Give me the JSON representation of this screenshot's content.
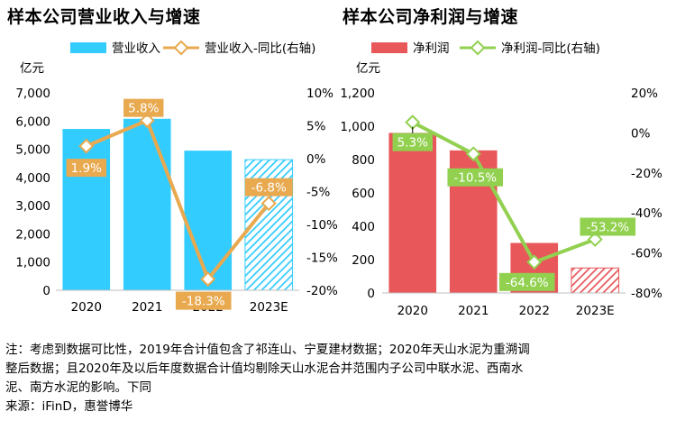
{
  "note": {
    "line1": "注：考虑到数据可比性，2019年合计值包含了祁连山、宁夏建材数据；2020年天山水泥为重溯调",
    "line2": "整后数据；且2020年及以后年度数据合计值均剔除天山水泥合并范围内子公司中联水泥、西南水",
    "line3": "泥、南方水泥的影响。下同",
    "source": "来源：iFinD，惠誉博华"
  },
  "colors": {
    "revenue_bar": "#33ccff",
    "revenue_line": "#e8a94f",
    "profit_bar": "#e8575a",
    "profit_line": "#92d050",
    "grid": "#d9d9d9"
  },
  "chart_data": [
    {
      "type": "bar",
      "title": "样本公司营业收入与增速",
      "unit": "亿元",
      "categories": [
        "2020",
        "2021",
        "2022",
        "2023E"
      ],
      "series": [
        {
          "name": "营业收入",
          "type": "bar",
          "axis": "left",
          "values": [
            5720,
            6080,
            4950,
            4630
          ],
          "hatched_last": true
        },
        {
          "name": "营业收入-同比(右轴)",
          "type": "line",
          "axis": "right",
          "values": [
            1.9,
            5.8,
            -18.3,
            -6.8
          ],
          "labels": [
            "1.9%",
            "5.8%",
            "-18.3%",
            "-6.8%"
          ]
        }
      ],
      "y_left": {
        "min": 0,
        "max": 7000,
        "ticks": [
          0,
          1000,
          2000,
          3000,
          4000,
          5000,
          6000,
          7000
        ],
        "tick_labels": [
          "0",
          "1,000",
          "2,000",
          "3,000",
          "4,000",
          "5,000",
          "6,000",
          "7,000"
        ]
      },
      "y_right": {
        "min": -20,
        "max": 10,
        "ticks": [
          -20,
          -15,
          -10,
          -5,
          0,
          5,
          10
        ],
        "tick_labels": [
          "-20%",
          "-15%",
          "-10%",
          "-5%",
          "0%",
          "5%",
          "10%"
        ]
      },
      "grid": false,
      "legend_position": "top"
    },
    {
      "type": "bar",
      "title": "样本公司净利润与增速",
      "unit": "亿元",
      "categories": [
        "2020",
        "2021",
        "2022",
        "2023E"
      ],
      "series": [
        {
          "name": "净利润",
          "type": "bar",
          "axis": "left",
          "values": [
            960,
            855,
            300,
            150
          ],
          "hatched_last": true
        },
        {
          "name": "净利润-同比(右轴)",
          "type": "line",
          "axis": "right",
          "values": [
            5.3,
            -10.5,
            -64.6,
            -53.2
          ],
          "labels": [
            "5.3%",
            "-10.5%",
            "-64.6%",
            "-53.2%"
          ]
        }
      ],
      "y_left": {
        "min": 0,
        "max": 1200,
        "ticks": [
          0,
          200,
          400,
          600,
          800,
          1000,
          1200
        ],
        "tick_labels": [
          "0",
          "200",
          "400",
          "600",
          "800",
          "1,000",
          "1,200"
        ]
      },
      "y_right": {
        "min": -80,
        "max": 20,
        "ticks": [
          -80,
          -60,
          -40,
          -20,
          0,
          20
        ],
        "tick_labels": [
          "-80%",
          "-60%",
          "-40%",
          "-20%",
          "0%",
          "20%"
        ]
      },
      "grid": false,
      "legend_position": "top"
    }
  ]
}
